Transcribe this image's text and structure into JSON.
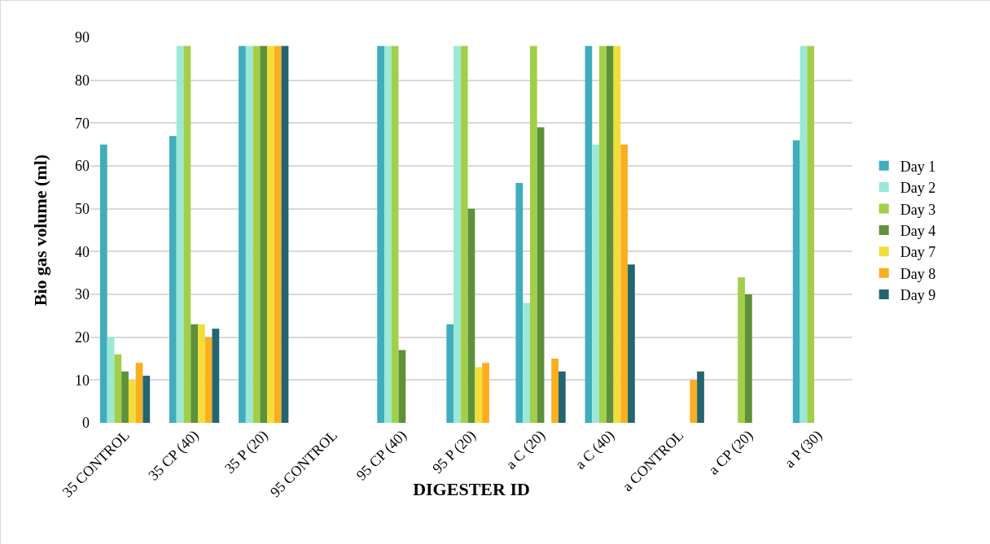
{
  "chart_data": {
    "type": "bar",
    "xlabel": "DIGESTER ID",
    "ylabel": "Bio gas volume (ml)",
    "categories": [
      "35 CONTROL",
      "35 CP (40)",
      "35 P (20)",
      "95 CONTROL",
      "95 CP (40)",
      "95 P (20)",
      "a C (20)",
      "a C (40)",
      "a CONTROL",
      "a CP (20)",
      "a P (30)"
    ],
    "series": [
      {
        "name": "Day 1",
        "color": "#3fadbd",
        "values": [
          65,
          67,
          88,
          0,
          88,
          23,
          56,
          88,
          0,
          0,
          66
        ]
      },
      {
        "name": "Day 2",
        "color": "#9be8d8",
        "values": [
          20,
          88,
          88,
          0,
          88,
          88,
          28,
          65,
          0,
          0,
          88
        ]
      },
      {
        "name": "Day 3",
        "color": "#a2cf4a",
        "values": [
          16,
          88,
          88,
          0,
          88,
          88,
          88,
          88,
          0,
          34,
          88
        ]
      },
      {
        "name": "Day 4",
        "color": "#5e913a",
        "values": [
          12,
          23,
          88,
          0,
          17,
          50,
          69,
          88,
          0,
          30,
          0
        ]
      },
      {
        "name": "Day 7",
        "color": "#f2de3a",
        "values": [
          10,
          23,
          88,
          0,
          0,
          13,
          0,
          88,
          0,
          0,
          0
        ]
      },
      {
        "name": "Day 8",
        "color": "#fbae1e",
        "values": [
          14,
          20,
          88,
          0,
          0,
          14,
          15,
          65,
          10,
          0,
          0
        ]
      },
      {
        "name": "Day 9",
        "color": "#236570",
        "values": [
          11,
          22,
          88,
          0,
          0,
          0,
          12,
          37,
          12,
          0,
          0
        ]
      }
    ],
    "ylim": [
      0,
      90
    ],
    "yticks": [
      0,
      10,
      20,
      30,
      40,
      50,
      60,
      70,
      80,
      90
    ],
    "grid": "y",
    "legend": "right"
  }
}
